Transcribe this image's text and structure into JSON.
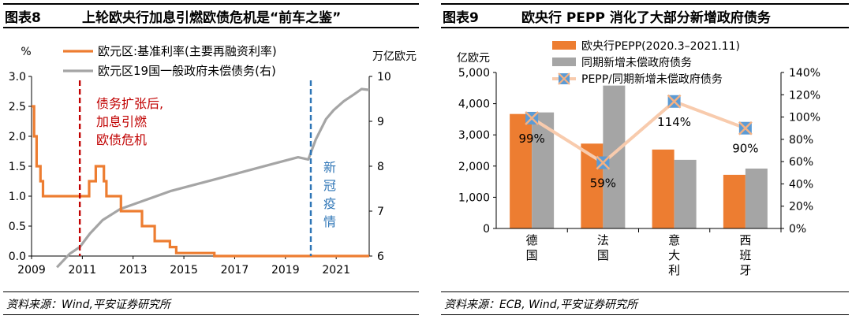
{
  "left": {
    "fig_no": "图表8",
    "title": "上轮欧央行加息引燃欧债危机是“前车之鉴”",
    "source": "资料来源：Wind,平安证券研究所",
    "left_axis_unit": "%",
    "right_axis_unit": "万亿欧元",
    "annotation_red": [
      "债务扩张后,",
      "加息引燃",
      "欧债危机"
    ],
    "annotation_blue": [
      "新",
      "冠",
      "疫",
      "情"
    ],
    "colors": {
      "rate": "#ED7D31",
      "debt": "#A5A5A5",
      "red_line": "#C00000",
      "blue_line": "#2E75B6"
    }
  },
  "right": {
    "fig_no": "图表9",
    "title": "欧央行 PEPP 消化了大部分新增政府债务",
    "source": "资料来源：ECB, Wind,平安证券研究所",
    "left_axis_unit": "亿欧元",
    "colors": {
      "pepp": "#ED7D31",
      "debt": "#A5A5A5",
      "ratio_line": "#F8CBAD",
      "marker_fill": "#5B9BD5",
      "marker_x": "#F4B183"
    }
  },
  "chart_data": [
    {
      "type": "line",
      "xlim": [
        2009,
        2022.3
      ],
      "x_ticks": [
        "2009",
        "2011",
        "2013",
        "2015",
        "2017",
        "2019",
        "2021"
      ],
      "ylim_left": [
        0,
        3.0
      ],
      "y_ticks_left": [
        "0.0",
        "0.5",
        "1.0",
        "1.5",
        "2.0",
        "2.5",
        "3.0"
      ],
      "ylim_right": [
        6,
        10
      ],
      "y_ticks_right": [
        "6",
        "7",
        "8",
        "9",
        "10"
      ],
      "legend_position": "top",
      "series": [
        {
          "name": "欧元区:基准利率(主要再融资利率)",
          "axis": "left",
          "step": true,
          "points": [
            [
              2009.0,
              2.5
            ],
            [
              2009.1,
              2.0
            ],
            [
              2009.2,
              1.5
            ],
            [
              2009.35,
              1.25
            ],
            [
              2009.45,
              1.0
            ],
            [
              2011.27,
              1.25
            ],
            [
              2011.53,
              1.5
            ],
            [
              2011.85,
              1.25
            ],
            [
              2011.95,
              1.0
            ],
            [
              2012.52,
              0.75
            ],
            [
              2013.35,
              0.5
            ],
            [
              2013.85,
              0.25
            ],
            [
              2014.45,
              0.15
            ],
            [
              2014.7,
              0.05
            ],
            [
              2016.2,
              0.0
            ],
            [
              2022.3,
              0.0
            ]
          ]
        },
        {
          "name": "欧元区19国一般政府未偿债务(右)",
          "axis": "right",
          "points": [
            [
              2010.0,
              5.75
            ],
            [
              2010.5,
              6.05
            ],
            [
              2010.9,
              6.2
            ],
            [
              2011.3,
              6.5
            ],
            [
              2011.8,
              6.8
            ],
            [
              2012.5,
              7.05
            ],
            [
              2013.5,
              7.25
            ],
            [
              2014.5,
              7.45
            ],
            [
              2015.5,
              7.6
            ],
            [
              2016.5,
              7.75
            ],
            [
              2017.5,
              7.9
            ],
            [
              2018.5,
              8.05
            ],
            [
              2019.5,
              8.2
            ],
            [
              2019.9,
              8.15
            ],
            [
              2020.2,
              8.6
            ],
            [
              2020.6,
              9.05
            ],
            [
              2020.9,
              9.25
            ],
            [
              2021.3,
              9.45
            ],
            [
              2021.7,
              9.6
            ],
            [
              2022.0,
              9.72
            ],
            [
              2022.3,
              9.7
            ]
          ]
        }
      ],
      "vlines": [
        {
          "x": 2010.9,
          "color": "red"
        },
        {
          "x": 2020.0,
          "color": "blue"
        }
      ]
    },
    {
      "type": "bar",
      "categories": [
        "德\n国",
        "法\n国",
        "意\n大\n利",
        "西\n班\n牙"
      ],
      "ylim_left": [
        0,
        5000
      ],
      "y_ticks_left": [
        "0",
        "1,000",
        "2,000",
        "3,000",
        "4,000",
        "5,000"
      ],
      "ylim_right": [
        0,
        140
      ],
      "y_ticks_right": [
        "0%",
        "20%",
        "40%",
        "60%",
        "80%",
        "100%",
        "120%",
        "140%"
      ],
      "legend_position": "top",
      "series": [
        {
          "name": "欧央行PEPP(2020.3–2021.11)",
          "axis": "left",
          "type": "bar",
          "values": [
            3670,
            2720,
            2530,
            1720
          ]
        },
        {
          "name": "同期新增未偿政府债务",
          "axis": "left",
          "type": "bar",
          "values": [
            3720,
            4580,
            2200,
            1920
          ]
        },
        {
          "name": "PEPP/同期新增未偿政府债务",
          "axis": "right",
          "type": "line",
          "values": [
            99,
            59,
            114,
            90
          ],
          "labels": [
            "99%",
            "59%",
            "114%",
            "90%"
          ]
        }
      ]
    }
  ]
}
